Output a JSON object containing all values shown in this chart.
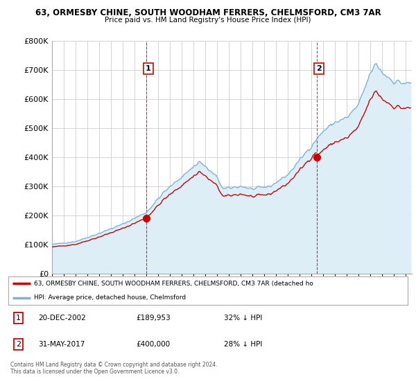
{
  "title1": "63, ORMESBY CHINE, SOUTH WOODHAM FERRERS, CHELMSFORD, CM3 7AR",
  "title2": "Price paid vs. HM Land Registry's House Price Index (HPI)",
  "hpi_color": "#7ab4d8",
  "hpi_fill_color": "#ddeef7",
  "price_color": "#cc0000",
  "vline_color": "#cc0000",
  "ylim": [
    0,
    800000
  ],
  "xlim_start": 1995.0,
  "xlim_end": 2025.5,
  "legend_entry1": "63, ORMESBY CHINE, SOUTH WOODHAM FERRERS, CHELMSFORD, CM3 7AR (detached ho",
  "legend_entry2": "HPI: Average price, detached house, Chelmsford",
  "table_rows": [
    {
      "num": "1",
      "date": "20-DEC-2002",
      "price": "£189,953",
      "hpi": "32% ↓ HPI"
    },
    {
      "num": "2",
      "date": "31-MAY-2017",
      "price": "£400,000",
      "hpi": "28% ↓ HPI"
    }
  ],
  "sale_years": [
    2002.97,
    2017.42
  ],
  "sale_prices": [
    189953,
    400000
  ],
  "footnote": "Contains HM Land Registry data © Crown copyright and database right 2024.\nThis data is licensed under the Open Government Licence v3.0.",
  "bg_color": "#ffffff",
  "grid_color": "#cccccc",
  "yticks": [
    0,
    100000,
    200000,
    300000,
    400000,
    500000,
    600000,
    700000,
    800000
  ]
}
